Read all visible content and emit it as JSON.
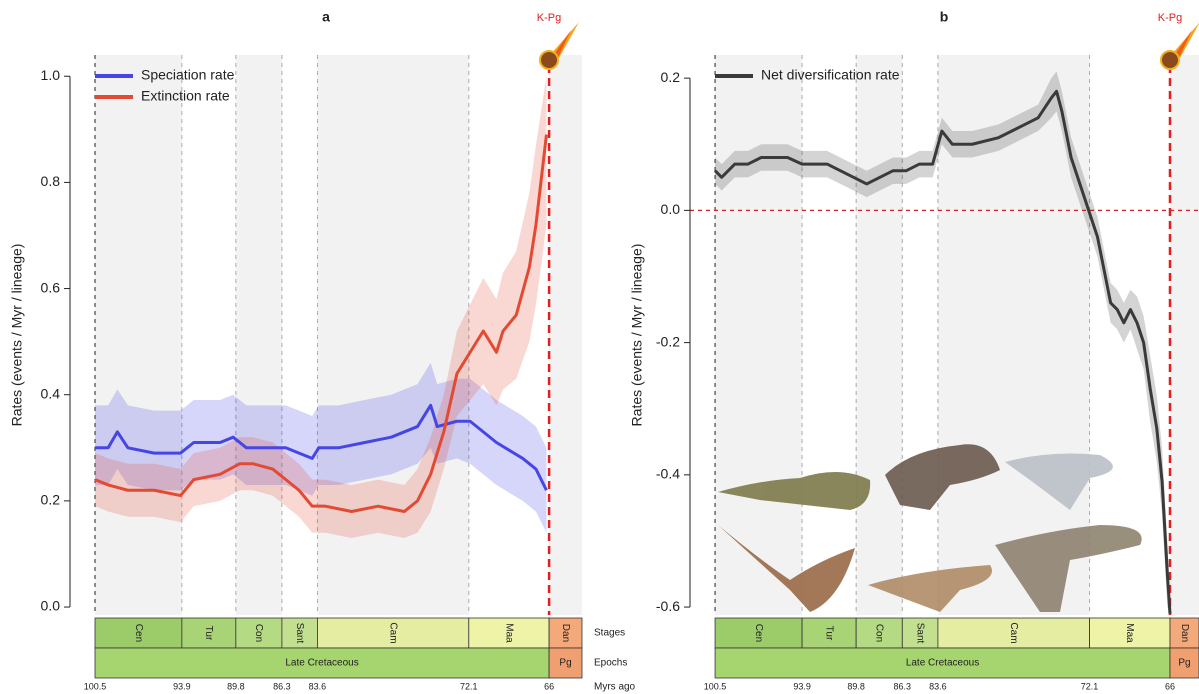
{
  "chart_data": [
    {
      "type": "line",
      "title": "a",
      "annotation": "K-Pg",
      "y_label": "Rates (events / Myr / lineage)",
      "xlim": [
        102.4,
        63.5
      ],
      "ylim": [
        -0.015,
        1.04
      ],
      "yticks": [
        {
          "value": 0,
          "label": "0.0"
        },
        0.2,
        0.4,
        0.6,
        0.8,
        {
          "value": 1,
          "label": "1.0"
        }
      ],
      "legend": "upper left",
      "series": [
        {
          "name": "Speciation rate",
          "color": "#4646e6",
          "x": [
            100.5,
            99.5,
            98.8,
            98,
            96,
            94,
            93,
            91,
            90,
            89,
            87,
            86,
            85,
            84,
            83.5,
            82,
            80,
            78,
            76,
            75,
            74.5,
            73,
            72,
            71,
            70,
            68,
            67,
            66.2
          ],
          "values": [
            0.3,
            0.3,
            0.33,
            0.3,
            0.29,
            0.29,
            0.31,
            0.31,
            0.32,
            0.3,
            0.3,
            0.3,
            0.29,
            0.28,
            0.3,
            0.3,
            0.31,
            0.32,
            0.34,
            0.38,
            0.34,
            0.35,
            0.35,
            0.33,
            0.31,
            0.28,
            0.26,
            0.22
          ],
          "lower": [
            0.23,
            0.23,
            0.26,
            0.23,
            0.22,
            0.22,
            0.24,
            0.24,
            0.25,
            0.23,
            0.23,
            0.23,
            0.22,
            0.21,
            0.23,
            0.23,
            0.24,
            0.25,
            0.27,
            0.3,
            0.27,
            0.28,
            0.27,
            0.25,
            0.23,
            0.2,
            0.18,
            0.14
          ],
          "upper": [
            0.38,
            0.38,
            0.41,
            0.38,
            0.37,
            0.37,
            0.39,
            0.39,
            0.4,
            0.38,
            0.38,
            0.38,
            0.37,
            0.36,
            0.38,
            0.38,
            0.39,
            0.4,
            0.42,
            0.46,
            0.42,
            0.43,
            0.43,
            0.41,
            0.39,
            0.36,
            0.34,
            0.3
          ]
        },
        {
          "name": "Extinction rate",
          "color": "#e34a33",
          "x": [
            100.5,
            99.5,
            98,
            96,
            94,
            93,
            91,
            89.5,
            88.5,
            87,
            86,
            85,
            84,
            83,
            81,
            79,
            77,
            76,
            75,
            74,
            73,
            72,
            71,
            70,
            69.5,
            68.5,
            67.5,
            67,
            66.2
          ],
          "values": [
            0.24,
            0.23,
            0.22,
            0.22,
            0.21,
            0.24,
            0.25,
            0.27,
            0.27,
            0.26,
            0.24,
            0.22,
            0.19,
            0.19,
            0.18,
            0.19,
            0.18,
            0.2,
            0.25,
            0.33,
            0.44,
            0.48,
            0.52,
            0.48,
            0.52,
            0.55,
            0.64,
            0.72,
            0.89
          ],
          "lower": [
            0.19,
            0.18,
            0.17,
            0.17,
            0.16,
            0.19,
            0.2,
            0.22,
            0.22,
            0.21,
            0.19,
            0.17,
            0.14,
            0.14,
            0.13,
            0.14,
            0.13,
            0.14,
            0.18,
            0.26,
            0.36,
            0.39,
            0.42,
            0.38,
            0.41,
            0.43,
            0.5,
            0.57,
            0.72
          ],
          "upper": [
            0.29,
            0.28,
            0.27,
            0.27,
            0.26,
            0.29,
            0.3,
            0.32,
            0.32,
            0.31,
            0.29,
            0.27,
            0.24,
            0.24,
            0.23,
            0.24,
            0.23,
            0.26,
            0.32,
            0.4,
            0.52,
            0.57,
            0.62,
            0.58,
            0.63,
            0.67,
            0.78,
            0.87,
            1.0
          ]
        }
      ],
      "timescale": {
        "boundaries": [
          100.5,
          93.9,
          89.8,
          86.3,
          83.6,
          72.1,
          66
        ],
        "stages": [
          "Cen",
          "Tur",
          "Con",
          "Sant",
          "Cam",
          "Maa",
          "Dan"
        ],
        "stage_colors": [
          "#9ccc6a",
          "#a9d476",
          "#b5da84",
          "#c3e090",
          "#e4eda2",
          "#eef3a8",
          "#f4a97a"
        ],
        "epochs": [
          "Late Cretaceous",
          "Pg"
        ],
        "epoch_colors": [
          "#a6d46e",
          "#f0a070"
        ],
        "row_labels": [
          "Stages",
          "Epochs",
          "Myrs ago"
        ]
      }
    },
    {
      "type": "line",
      "title": "b",
      "annotation": "K-Pg",
      "y_label": "Rates (events / Myr / lineage)",
      "xlim": [
        102.4,
        63.8
      ],
      "ylim": [
        -0.612,
        0.235
      ],
      "yticks": [
        -0.6,
        -0.4,
        -0.2,
        {
          "value": 0,
          "label": "0.0"
        },
        0.2
      ],
      "reference_line": 0,
      "legend": "upper left",
      "series": [
        {
          "name": "Net diversification rate",
          "color": "#3a3a3a",
          "x": [
            100.5,
            100,
            99,
            98,
            97,
            95,
            93.9,
            92,
            91,
            90,
            89,
            88,
            87,
            86,
            85,
            84,
            83.3,
            82.5,
            81,
            79,
            77,
            76,
            75,
            74.6,
            74.2,
            73.5,
            72.5,
            71.5,
            71,
            70.5,
            70,
            69.5,
            69,
            68.5,
            68,
            67.5,
            67,
            66.6,
            66.2,
            66
          ],
          "values": [
            0.06,
            0.05,
            0.07,
            0.07,
            0.08,
            0.08,
            0.07,
            0.07,
            0.06,
            0.05,
            0.04,
            0.05,
            0.06,
            0.06,
            0.07,
            0.07,
            0.12,
            0.1,
            0.1,
            0.11,
            0.13,
            0.14,
            0.17,
            0.18,
            0.15,
            0.08,
            0.02,
            -0.04,
            -0.09,
            -0.14,
            -0.15,
            -0.17,
            -0.15,
            -0.17,
            -0.2,
            -0.27,
            -0.33,
            -0.41,
            -0.55,
            -0.61
          ],
          "lower": [
            0.04,
            0.03,
            0.05,
            0.05,
            0.06,
            0.06,
            0.05,
            0.05,
            0.04,
            0.03,
            0.02,
            0.03,
            0.04,
            0.04,
            0.05,
            0.05,
            0.1,
            0.08,
            0.08,
            0.09,
            0.11,
            0.12,
            0.14,
            0.15,
            0.12,
            0.05,
            -0.01,
            -0.07,
            -0.12,
            -0.17,
            -0.18,
            -0.2,
            -0.18,
            -0.21,
            -0.24,
            -0.32,
            -0.38,
            -0.46,
            -0.6,
            -0.61
          ],
          "upper": [
            0.08,
            0.07,
            0.09,
            0.09,
            0.1,
            0.1,
            0.09,
            0.09,
            0.08,
            0.07,
            0.06,
            0.07,
            0.08,
            0.08,
            0.09,
            0.09,
            0.14,
            0.12,
            0.12,
            0.13,
            0.15,
            0.16,
            0.2,
            0.21,
            0.18,
            0.11,
            0.05,
            -0.01,
            -0.06,
            -0.11,
            -0.12,
            -0.14,
            -0.12,
            -0.13,
            -0.16,
            -0.22,
            -0.28,
            -0.36,
            -0.5,
            -0.58
          ]
        }
      ],
      "timescale": {
        "boundaries": [
          100.5,
          93.9,
          89.8,
          86.3,
          83.6,
          72.1,
          66
        ],
        "stages": [
          "Cen",
          "Tur",
          "Con",
          "Sant",
          "Cam",
          "Maa",
          "Dan"
        ],
        "stage_colors": [
          "#9ccc6a",
          "#a9d476",
          "#b5da84",
          "#c3e090",
          "#e4eda2",
          "#eef3a8",
          "#f4a97a"
        ],
        "epochs": [
          "Late Cretaceous",
          "Pg"
        ],
        "epoch_colors": [
          "#a6d46e",
          "#f0a070"
        ]
      }
    }
  ]
}
